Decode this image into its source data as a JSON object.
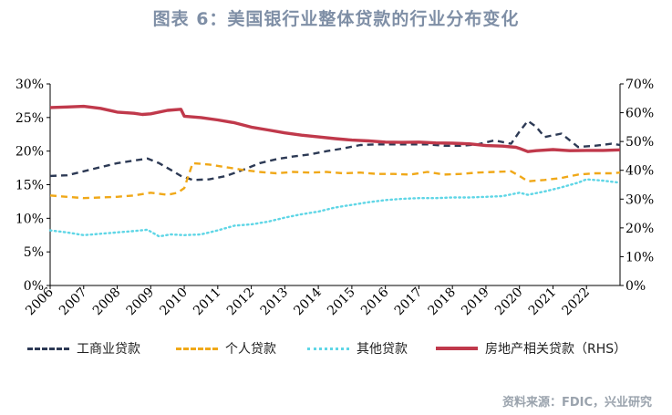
{
  "title": "图表 6：美国银行业整体贷款的行业分布变化",
  "source": "资料来源：FDIC，兴业研究",
  "chart_data": {
    "type": "line",
    "xlim": [
      2006,
      2023
    ],
    "x_tick_labels": [
      "2006",
      "2007",
      "2008",
      "2009",
      "2010",
      "2011",
      "2012",
      "2013",
      "2014",
      "2015",
      "2016",
      "2017",
      "2018",
      "2019",
      "2020",
      "2021",
      "2022"
    ],
    "y_left": {
      "lim": [
        0,
        30
      ],
      "ticks": [
        0,
        5,
        10,
        15,
        20,
        25,
        30
      ],
      "tick_labels": [
        "0%",
        "5%",
        "10%",
        "15%",
        "20%",
        "25%",
        "30%"
      ]
    },
    "y_right": {
      "lim": [
        0,
        70
      ],
      "ticks": [
        0,
        10,
        20,
        30,
        40,
        50,
        60,
        70
      ],
      "tick_labels": [
        "0%",
        "10%",
        "20%",
        "30%",
        "40%",
        "50%",
        "60%",
        "70%"
      ]
    },
    "legend_position": "bottom",
    "series": [
      {
        "name": "工商业贷款",
        "axis": "left",
        "color": "#2d3a55",
        "style": "dash",
        "x": [
          2006,
          2006.5,
          2007,
          2007.5,
          2008,
          2008.5,
          2008.9,
          2009.25,
          2009.6,
          2009.9,
          2010.25,
          2010.75,
          2011.25,
          2011.75,
          2012.25,
          2012.75,
          2013.25,
          2013.75,
          2014.25,
          2014.75,
          2015.25,
          2015.75,
          2016.25,
          2016.75,
          2017.25,
          2017.75,
          2018.25,
          2018.75,
          2019.25,
          2019.75,
          2020.0,
          2020.25,
          2020.5,
          2020.75,
          2021.25,
          2021.75,
          2022.25,
          2022.75,
          2023
        ],
        "y": [
          16.3,
          16.4,
          17.0,
          17.6,
          18.2,
          18.6,
          18.9,
          18.2,
          17.2,
          16.3,
          15.7,
          15.8,
          16.3,
          17.2,
          18.2,
          18.8,
          19.2,
          19.5,
          20.0,
          20.4,
          20.9,
          21.0,
          21.0,
          21.0,
          21.0,
          20.8,
          20.8,
          21.0,
          21.6,
          21.1,
          22.9,
          24.5,
          23.6,
          22.1,
          22.6,
          20.6,
          20.8,
          21.1,
          20.9
        ]
      },
      {
        "name": "个人贷款",
        "axis": "left",
        "color": "#f0a818",
        "style": "dash",
        "x": [
          2006,
          2006.5,
          2007,
          2007.5,
          2008,
          2008.5,
          2009,
          2009.5,
          2009.8,
          2010.0,
          2010.25,
          2010.75,
          2011.25,
          2011.75,
          2012.25,
          2012.75,
          2013.25,
          2013.75,
          2014.25,
          2014.75,
          2015.25,
          2015.75,
          2016.25,
          2016.75,
          2017.25,
          2017.75,
          2018.25,
          2018.75,
          2019.25,
          2019.75,
          2020.0,
          2020.25,
          2020.75,
          2021.25,
          2021.75,
          2022.25,
          2022.75,
          2023
        ],
        "y": [
          13.4,
          13.2,
          13.0,
          13.1,
          13.2,
          13.4,
          13.8,
          13.5,
          13.8,
          14.5,
          18.2,
          18.0,
          17.6,
          17.2,
          16.9,
          16.7,
          16.9,
          16.8,
          16.9,
          16.7,
          16.8,
          16.6,
          16.6,
          16.5,
          16.9,
          16.5,
          16.6,
          16.8,
          16.9,
          17.0,
          16.3,
          15.5,
          15.7,
          16.0,
          16.5,
          16.7,
          16.7,
          16.8
        ]
      },
      {
        "name": "其他贷款",
        "axis": "left",
        "color": "#5fd6e6",
        "style": "dot",
        "x": [
          2006,
          2006.5,
          2007,
          2007.5,
          2008,
          2008.5,
          2008.9,
          2009.25,
          2009.6,
          2010.0,
          2010.5,
          2011.0,
          2011.5,
          2012.0,
          2012.5,
          2013.0,
          2013.5,
          2014.0,
          2014.5,
          2015.0,
          2015.5,
          2016.0,
          2016.5,
          2017.0,
          2017.5,
          2018.0,
          2018.5,
          2019.0,
          2019.5,
          2020.0,
          2020.25,
          2020.75,
          2021.25,
          2021.75,
          2022.0,
          2022.5,
          2023
        ],
        "y": [
          8.2,
          7.9,
          7.5,
          7.7,
          7.9,
          8.1,
          8.3,
          7.3,
          7.6,
          7.5,
          7.6,
          8.2,
          8.9,
          9.1,
          9.5,
          10.1,
          10.6,
          11.0,
          11.6,
          12.0,
          12.4,
          12.7,
          12.9,
          13.0,
          13.0,
          13.1,
          13.1,
          13.2,
          13.3,
          13.8,
          13.5,
          14.0,
          14.6,
          15.3,
          15.8,
          15.6,
          15.3
        ]
      },
      {
        "name": "房地产相关贷款（RHS）",
        "axis": "right",
        "color": "#c0394b",
        "style": "solid",
        "x": [
          2006,
          2006.5,
          2007,
          2007.5,
          2008,
          2008.5,
          2008.75,
          2009.0,
          2009.5,
          2009.9,
          2010.0,
          2010.5,
          2011.0,
          2011.5,
          2012.0,
          2012.5,
          2013.0,
          2013.5,
          2014.0,
          2014.5,
          2015.0,
          2015.5,
          2016.0,
          2016.5,
          2017.0,
          2017.5,
          2018.0,
          2018.5,
          2019.0,
          2019.5,
          2019.9,
          2020.0,
          2020.25,
          2020.5,
          2021.0,
          2021.5,
          2022.0,
          2022.5,
          2023
        ],
        "y": [
          61.8,
          62.0,
          62.2,
          61.5,
          60.2,
          59.8,
          59.4,
          59.6,
          60.8,
          61.2,
          58.8,
          58.3,
          57.5,
          56.5,
          55.0,
          54.0,
          53.0,
          52.2,
          51.6,
          51.0,
          50.5,
          50.2,
          49.8,
          49.7,
          49.8,
          49.5,
          49.4,
          49.2,
          48.6,
          48.4,
          48.0,
          47.6,
          46.5,
          46.8,
          47.2,
          46.8,
          46.9,
          46.9,
          47.1
        ]
      }
    ]
  }
}
